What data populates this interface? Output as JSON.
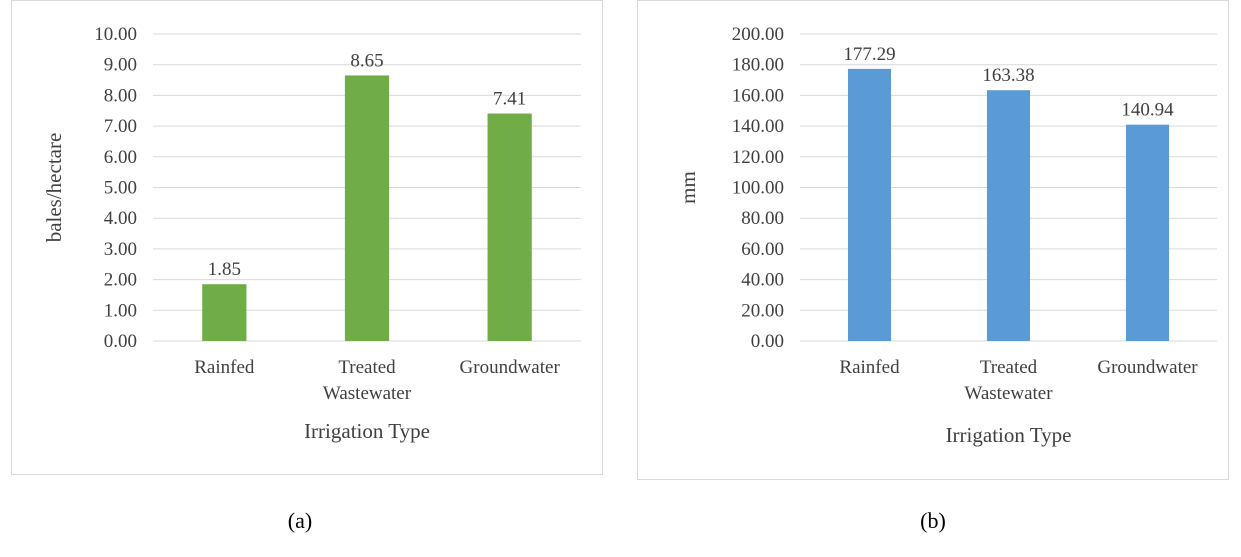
{
  "chart_data": [
    {
      "type": "bar",
      "panel_label": "(a)",
      "categories": [
        [
          "Rainfed"
        ],
        [
          "Treated",
          "Wastewater"
        ],
        [
          "Groundwater"
        ]
      ],
      "values": [
        1.85,
        8.65,
        7.41
      ],
      "value_labels": [
        "1.85",
        "8.65",
        "7.41"
      ],
      "xlabel": "Irrigation Type",
      "ylabel": "bales/hectare",
      "ylim": [
        0,
        10
      ],
      "yticks": [
        "0.00",
        "1.00",
        "2.00",
        "3.00",
        "4.00",
        "5.00",
        "6.00",
        "7.00",
        "8.00",
        "9.00",
        "10.00"
      ],
      "grid": true,
      "bar_color": "#70ad47"
    },
    {
      "type": "bar",
      "panel_label": "(b)",
      "categories": [
        [
          "Rainfed"
        ],
        [
          "Treated",
          "Wastewater"
        ],
        [
          "Groundwater"
        ]
      ],
      "values": [
        177.29,
        163.38,
        140.94
      ],
      "value_labels": [
        "177.29",
        "163.38",
        "140.94"
      ],
      "xlabel": "Irrigation Type",
      "ylabel": "mm",
      "ylim": [
        0,
        200
      ],
      "yticks": [
        "0.00",
        "20.00",
        "40.00",
        "60.00",
        "80.00",
        "100.00",
        "120.00",
        "140.00",
        "160.00",
        "180.00",
        "200.00"
      ],
      "grid": true,
      "bar_color": "#5b9bd5"
    }
  ]
}
